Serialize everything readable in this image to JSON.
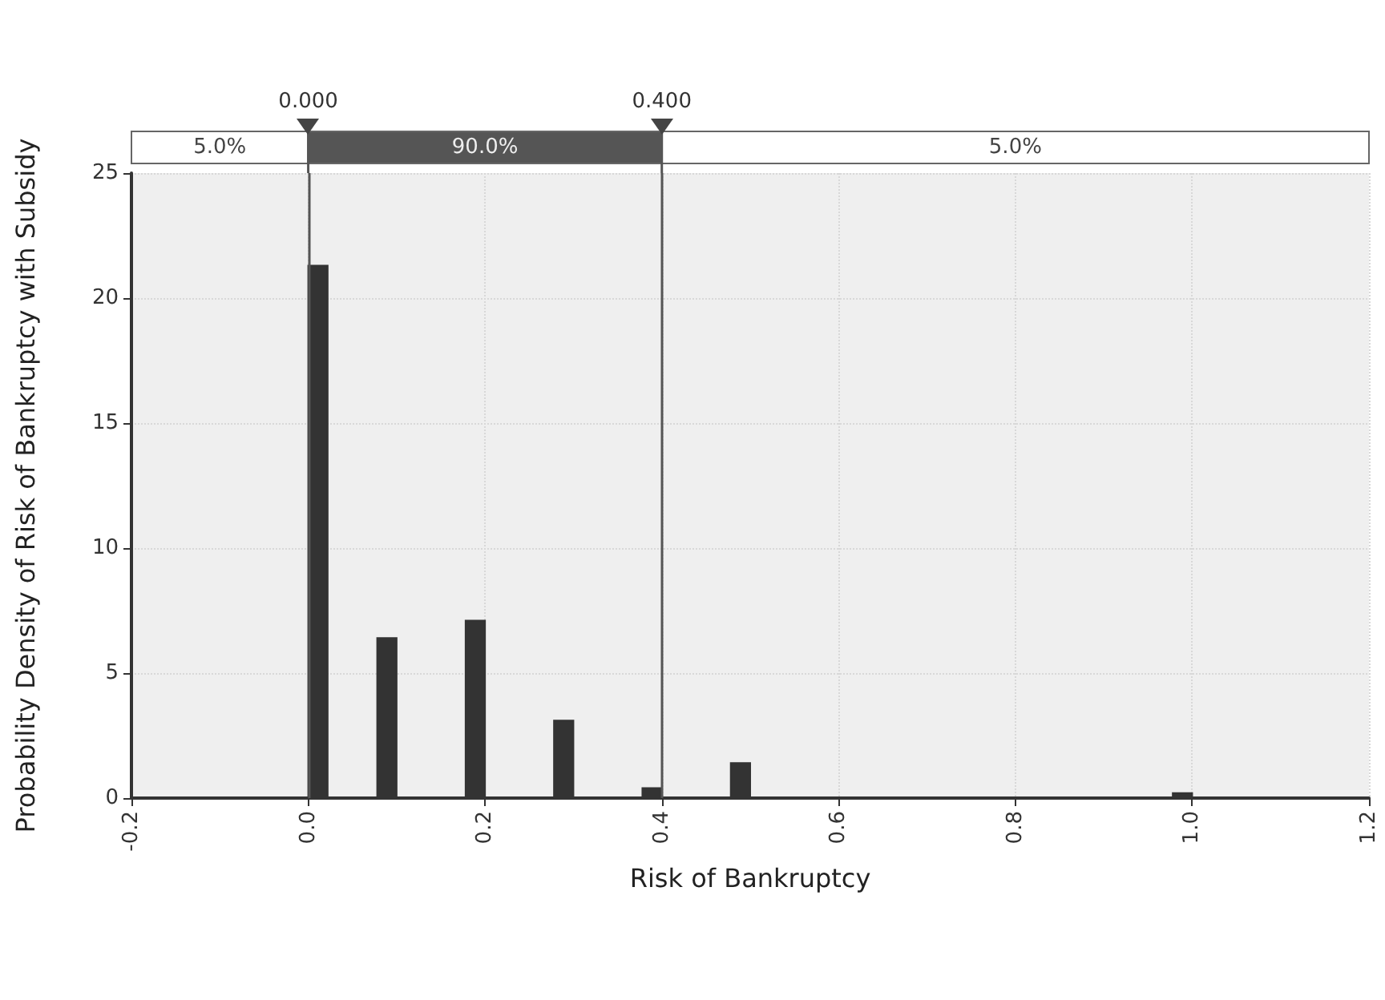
{
  "chart_data": {
    "type": "histogram",
    "xlabel": "Risk of Bankruptcy",
    "ylabel": "Probability Density of Risk of Bankruptcy with Subsidy",
    "bins": [
      0,
      0.022,
      0.078,
      0.1,
      0.178,
      0.2,
      0.278,
      0.3,
      0.378,
      0.4,
      0.478,
      0.5,
      0.978,
      1.0
    ],
    "values": [
      21.3,
      0,
      6.4,
      0,
      7.1,
      0,
      3.1,
      0,
      0.4,
      0,
      1.4,
      0,
      0.2
    ],
    "color": "#333333",
    "xlim": [
      -0.2,
      1.2
    ],
    "xticks": [
      {
        "value": -0.2,
        "label": "-0.2"
      },
      {
        "value": 0,
        "label": "0.0"
      },
      {
        "value": 0.2,
        "label": "0.2"
      },
      {
        "value": 0.4,
        "label": "0.4"
      },
      {
        "value": 0.6,
        "label": "0.6"
      },
      {
        "value": 0.8,
        "label": "0.8"
      },
      {
        "value": 1.0,
        "label": "1.0"
      },
      {
        "value": 1.2,
        "label": "1.2"
      }
    ],
    "ylim": [
      0,
      25
    ],
    "yticks": [
      0,
      5,
      10,
      15,
      20,
      25
    ],
    "grid": true,
    "annotations": [
      "5.0%",
      "90.0%",
      "5.0%"
    ],
    "ref_lines": [
      {
        "axis": "x",
        "value": 0,
        "label": "0.000"
      },
      {
        "axis": "x",
        "value": 0.4,
        "label": "0.400"
      }
    ]
  }
}
